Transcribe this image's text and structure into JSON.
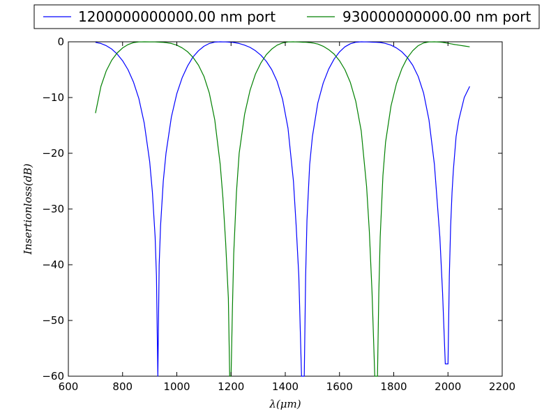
{
  "colors": {
    "series1": "#0000ff",
    "series2": "#008000",
    "axis": "#000000",
    "background": "#ffffff"
  },
  "chart_data": {
    "type": "line",
    "title": "",
    "xlabel": "λ(μm)",
    "ylabel": "Insertionloss(dB)",
    "xlim": [
      600,
      2200
    ],
    "ylim": [
      -60,
      0
    ],
    "xticks": [
      600,
      800,
      1000,
      1200,
      1400,
      1600,
      1800,
      2000,
      2200
    ],
    "yticks": [
      0,
      -10,
      -20,
      -30,
      -40,
      -50,
      -60
    ],
    "xtick_labels": [
      "600",
      "800",
      "1000",
      "1200",
      "1400",
      "1600",
      "1800",
      "2000",
      "2200"
    ],
    "ytick_labels": [
      "0",
      "−10",
      "−20",
      "−30",
      "−40",
      "−50",
      "−60"
    ],
    "grid": false,
    "legend_position": "top, above plot, horizontal",
    "x": [
      700,
      720,
      740,
      760,
      780,
      800,
      820,
      840,
      860,
      880,
      900,
      910,
      920,
      925,
      930,
      935,
      940,
      950,
      960,
      980,
      1000,
      1020,
      1040,
      1060,
      1080,
      1100,
      1120,
      1140,
      1160,
      1170,
      1180,
      1190,
      1195,
      1200,
      1205,
      1210,
      1220,
      1230,
      1250,
      1270,
      1290,
      1310,
      1330,
      1350,
      1370,
      1390,
      1410,
      1430,
      1440,
      1450,
      1460,
      1465,
      1470,
      1475,
      1480,
      1490,
      1500,
      1520,
      1540,
      1560,
      1580,
      1600,
      1620,
      1640,
      1660,
      1680,
      1700,
      1710,
      1720,
      1730,
      1735,
      1740,
      1745,
      1750,
      1760,
      1770,
      1790,
      1810,
      1830,
      1850,
      1870,
      1890,
      1910,
      1930,
      1950,
      1970,
      1980,
      1990,
      2000,
      2005,
      2010,
      2015,
      2020,
      2030,
      2040,
      2060,
      2080
    ],
    "series": [
      {
        "name": "1200000000000.00 nm port",
        "color": "#0000ff",
        "values": [
          -0.1,
          -0.3,
          -0.7,
          -1.3,
          -2.2,
          -3.4,
          -5.0,
          -7.2,
          -10.2,
          -14.6,
          -21.5,
          -27.0,
          -35.0,
          -42.0,
          -60.0,
          -40.0,
          -33.0,
          -25.0,
          -20.0,
          -13.5,
          -9.3,
          -6.4,
          -4.3,
          -2.7,
          -1.6,
          -0.8,
          -0.3,
          -0.05,
          0.0,
          -0.01,
          -0.03,
          -0.05,
          -0.07,
          -0.08,
          -0.1,
          -0.12,
          -0.2,
          -0.3,
          -0.6,
          -1.0,
          -1.6,
          -2.4,
          -3.5,
          -5.0,
          -7.1,
          -10.3,
          -15.5,
          -25.0,
          -33.0,
          -42.0,
          -60.0,
          -60.0,
          -60.0,
          -42.0,
          -32.0,
          -22.0,
          -17.0,
          -11.0,
          -7.4,
          -4.9,
          -3.1,
          -1.8,
          -0.9,
          -0.35,
          -0.07,
          0.0,
          -0.02,
          -0.04,
          -0.06,
          -0.08,
          -0.09,
          -0.1,
          -0.11,
          -0.13,
          -0.2,
          -0.3,
          -0.6,
          -1.1,
          -1.8,
          -2.8,
          -4.2,
          -6.2,
          -9.2,
          -14.0,
          -22.0,
          -35.0,
          -45.0,
          -57.8,
          -57.8,
          -42.0,
          -33.0,
          -27.0,
          -23.0,
          -17.0,
          -14.0,
          -10.0,
          -8.0
        ]
      },
      {
        "name": "930000000000.00 nm port",
        "color": "#008000",
        "values": [
          -12.8,
          -8.0,
          -5.2,
          -3.3,
          -2.0,
          -1.1,
          -0.5,
          -0.15,
          -0.02,
          0.0,
          -0.01,
          -0.02,
          -0.03,
          -0.04,
          -0.05,
          -0.06,
          -0.07,
          -0.1,
          -0.15,
          -0.3,
          -0.6,
          -1.1,
          -1.8,
          -2.8,
          -4.2,
          -6.2,
          -9.2,
          -14.0,
          -22.0,
          -28.0,
          -36.0,
          -46.0,
          -60.0,
          -60.0,
          -48.0,
          -38.0,
          -27.0,
          -20.0,
          -13.0,
          -8.7,
          -5.8,
          -3.8,
          -2.3,
          -1.3,
          -0.6,
          -0.2,
          -0.03,
          0.0,
          -0.02,
          -0.04,
          -0.06,
          -0.07,
          -0.08,
          -0.09,
          -0.1,
          -0.15,
          -0.2,
          -0.4,
          -0.8,
          -1.4,
          -2.2,
          -3.4,
          -5.0,
          -7.3,
          -10.7,
          -16.0,
          -26.0,
          -34.0,
          -45.0,
          -60.0,
          -60.0,
          -60.0,
          -45.0,
          -35.0,
          -24.0,
          -18.0,
          -11.5,
          -7.5,
          -4.8,
          -2.9,
          -1.6,
          -0.7,
          -0.2,
          -0.02,
          0.0,
          -0.05,
          -0.1,
          -0.17,
          -0.25,
          -0.3,
          -0.35,
          -0.4,
          -0.45,
          -0.52,
          -0.6,
          -0.75,
          -0.9
        ]
      }
    ]
  }
}
